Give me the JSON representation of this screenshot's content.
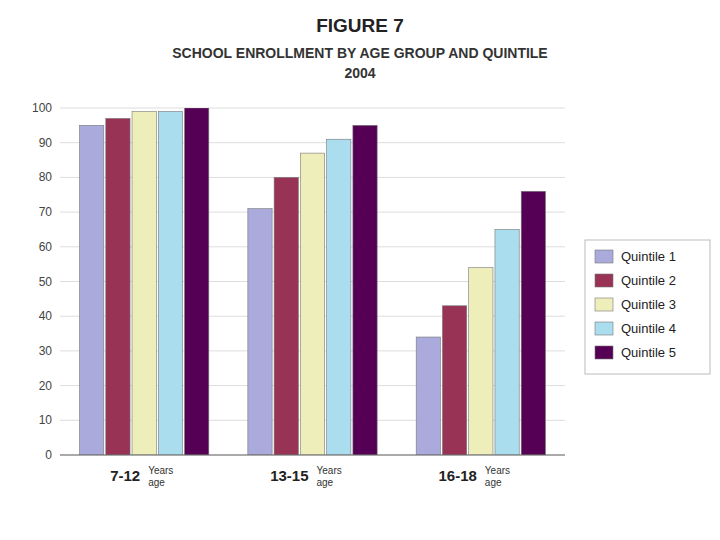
{
  "chart_data": {
    "type": "bar",
    "title": "FIGURE 7",
    "subtitle": [
      "SCHOOL ENROLLMENT BY AGE GROUP AND QUINTILE",
      "2004"
    ],
    "categories": [
      "7-12",
      "13-15",
      "16-18"
    ],
    "annotations": [
      "Years\nage",
      "Years\nage",
      "Years\nage"
    ],
    "series": [
      {
        "name": "Quintile 1",
        "color": "#AAAADD",
        "values": [
          95,
          71,
          34
        ]
      },
      {
        "name": "Quintile 2",
        "color": "#993355",
        "values": [
          97,
          80,
          43
        ]
      },
      {
        "name": "Quintile 3",
        "color": "#EEEEBB",
        "values": [
          99,
          87,
          54
        ]
      },
      {
        "name": "Quintile 4",
        "color": "#AADDEE",
        "values": [
          99,
          91,
          65
        ]
      },
      {
        "name": "Quintile 5",
        "color": "#550055",
        "values": [
          100,
          95,
          76
        ]
      }
    ],
    "ylim": [
      0,
      100
    ],
    "yticks": [
      0,
      10,
      20,
      30,
      40,
      50,
      60,
      70,
      80,
      90,
      100
    ],
    "grid": true,
    "legend": "right"
  }
}
